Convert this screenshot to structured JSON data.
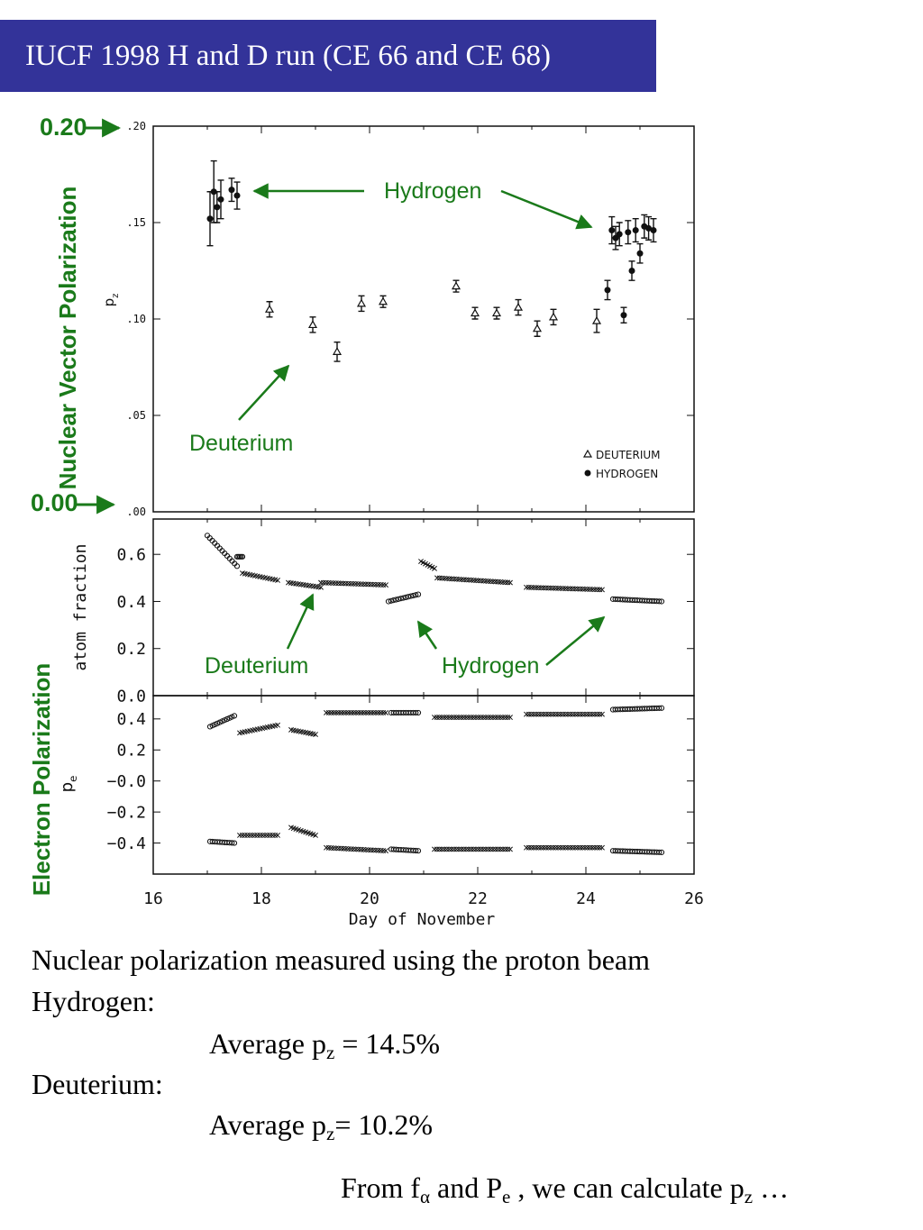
{
  "title": "IUCF 1998 H and D run (CE 66 and CE 68)",
  "colors": {
    "title_bg": "#333399",
    "annotation": "#1a7a1a",
    "ink": "#111111"
  },
  "annotations": {
    "top_marker": "0.20",
    "bottom_marker": "0.00",
    "nuclear_axis_title": "Nuclear Vector Polarization",
    "electron_axis_title": "Electron Polarization",
    "hydrogen_top": "Hydrogen",
    "deuterium_top": "Deuterium",
    "deuterium_mid": "Deuterium",
    "hydrogen_mid": "Hydrogen"
  },
  "chart_data": [
    {
      "type": "scatter",
      "ylabel": "p",
      "ylabel_sub": "z",
      "xlim": [
        16,
        26
      ],
      "ylim": [
        0.0,
        0.2
      ],
      "yticks": [
        ".00",
        ".05",
        ".10",
        ".15",
        ".20"
      ],
      "legend_position": "bottom-right",
      "series": [
        {
          "name": "DEUTERIUM",
          "marker": "open-triangle",
          "x": [
            18.15,
            18.95,
            19.4,
            19.85,
            20.25,
            21.6,
            21.95,
            22.35,
            22.75,
            23.1,
            23.4,
            24.2
          ],
          "y": [
            0.105,
            0.097,
            0.083,
            0.108,
            0.109,
            0.117,
            0.103,
            0.103,
            0.106,
            0.095,
            0.101,
            0.099
          ],
          "err": [
            0.004,
            0.004,
            0.005,
            0.004,
            0.003,
            0.003,
            0.003,
            0.003,
            0.004,
            0.004,
            0.004,
            0.006
          ]
        },
        {
          "name": "HYDROGEN",
          "marker": "filled-circle",
          "x": [
            17.05,
            17.12,
            17.18,
            17.25,
            17.45,
            17.55,
            24.4,
            24.48,
            24.55,
            24.62,
            24.7,
            24.78,
            24.85,
            24.92,
            25.0,
            25.08,
            25.16,
            25.25
          ],
          "y": [
            0.152,
            0.166,
            0.158,
            0.162,
            0.167,
            0.164,
            0.115,
            0.146,
            0.142,
            0.144,
            0.102,
            0.145,
            0.125,
            0.146,
            0.134,
            0.148,
            0.147,
            0.146
          ],
          "err": [
            0.014,
            0.016,
            0.008,
            0.01,
            0.006,
            0.007,
            0.005,
            0.007,
            0.006,
            0.006,
            0.004,
            0.006,
            0.005,
            0.006,
            0.005,
            0.006,
            0.006,
            0.006
          ]
        }
      ]
    },
    {
      "type": "scatter",
      "ylabel": "atom fraction",
      "xlim": [
        16,
        26
      ],
      "ylim": [
        0.0,
        0.75
      ],
      "yticks": [
        "0.0",
        "0.2",
        "0.4",
        "0.6"
      ],
      "segments": [
        {
          "marker": "circle",
          "x0": 17.0,
          "y0": 0.68,
          "x1": 17.55,
          "y1": 0.55
        },
        {
          "marker": "circle",
          "x0": 17.55,
          "y0": 0.59,
          "x1": 17.65,
          "y1": 0.59
        },
        {
          "marker": "cross",
          "x0": 17.65,
          "y0": 0.52,
          "x1": 18.3,
          "y1": 0.49
        },
        {
          "marker": "cross",
          "x0": 18.5,
          "y0": 0.48,
          "x1": 19.1,
          "y1": 0.46
        },
        {
          "marker": "cross",
          "x0": 19.1,
          "y0": 0.48,
          "x1": 20.3,
          "y1": 0.47
        },
        {
          "marker": "circle",
          "x0": 20.35,
          "y0": 0.4,
          "x1": 20.9,
          "y1": 0.43
        },
        {
          "marker": "cross",
          "x0": 20.95,
          "y0": 0.57,
          "x1": 21.2,
          "y1": 0.54
        },
        {
          "marker": "cross",
          "x0": 21.25,
          "y0": 0.5,
          "x1": 22.6,
          "y1": 0.48
        },
        {
          "marker": "cross",
          "x0": 22.9,
          "y0": 0.46,
          "x1": 24.3,
          "y1": 0.45
        },
        {
          "marker": "circle",
          "x0": 24.5,
          "y0": 0.41,
          "x1": 25.4,
          "y1": 0.4
        }
      ]
    },
    {
      "type": "scatter",
      "ylabel": "p",
      "ylabel_sub": "e",
      "xlabel": "Day of November",
      "xlim": [
        16,
        26
      ],
      "ylim": [
        -0.6,
        0.55
      ],
      "xticks": [
        "16",
        "18",
        "20",
        "22",
        "24",
        "26"
      ],
      "yticks": [
        "−0.4",
        "−0.2",
        "−0.0",
        "0.2",
        "0.4"
      ],
      "segments": [
        {
          "marker": "circle",
          "x0": 17.05,
          "y0": -0.39,
          "x1": 17.5,
          "y1": -0.4
        },
        {
          "marker": "circle",
          "x0": 17.05,
          "y0": 0.35,
          "x1": 17.5,
          "y1": 0.42
        },
        {
          "marker": "cross",
          "x0": 17.6,
          "y0": -0.35,
          "x1": 18.3,
          "y1": -0.35
        },
        {
          "marker": "cross",
          "x0": 17.6,
          "y0": 0.31,
          "x1": 18.3,
          "y1": 0.36
        },
        {
          "marker": "cross",
          "x0": 18.55,
          "y0": -0.3,
          "x1": 19.0,
          "y1": -0.35
        },
        {
          "marker": "cross",
          "x0": 18.55,
          "y0": 0.33,
          "x1": 19.0,
          "y1": 0.3
        },
        {
          "marker": "cross",
          "x0": 19.2,
          "y0": -0.43,
          "x1": 20.3,
          "y1": -0.45
        },
        {
          "marker": "cross",
          "x0": 19.2,
          "y0": 0.44,
          "x1": 20.3,
          "y1": 0.44
        },
        {
          "marker": "circle",
          "x0": 20.4,
          "y0": -0.44,
          "x1": 20.9,
          "y1": -0.45
        },
        {
          "marker": "circle",
          "x0": 20.4,
          "y0": 0.44,
          "x1": 20.9,
          "y1": 0.44
        },
        {
          "marker": "cross",
          "x0": 21.2,
          "y0": -0.44,
          "x1": 22.6,
          "y1": -0.44
        },
        {
          "marker": "cross",
          "x0": 21.2,
          "y0": 0.41,
          "x1": 22.6,
          "y1": 0.41
        },
        {
          "marker": "cross",
          "x0": 22.9,
          "y0": -0.43,
          "x1": 24.3,
          "y1": -0.43
        },
        {
          "marker": "cross",
          "x0": 22.9,
          "y0": 0.43,
          "x1": 24.3,
          "y1": 0.43
        },
        {
          "marker": "circle",
          "x0": 24.5,
          "y0": -0.45,
          "x1": 25.4,
          "y1": -0.46
        },
        {
          "marker": "circle",
          "x0": 24.5,
          "y0": 0.46,
          "x1": 25.4,
          "y1": 0.47
        }
      ]
    }
  ],
  "body": {
    "line1": "Nuclear polarization measured using the proton beam",
    "hydrogen_label": "Hydrogen:",
    "hydrogen_avg_prefix": "Average p",
    "hydrogen_avg_sub": "z",
    "hydrogen_avg_value": " = 14.5%",
    "deuterium_label": "Deuterium:",
    "deuterium_avg_prefix": "Average p",
    "deuterium_avg_sub": "z",
    "deuterium_avg_value": "= 10.2%",
    "footer_prefix": "From f",
    "footer_sub1": "α",
    "footer_mid": " and P",
    "footer_sub2": "e",
    "footer_mid2": " , we can calculate p",
    "footer_sub3": "z",
    "footer_end": " …"
  }
}
